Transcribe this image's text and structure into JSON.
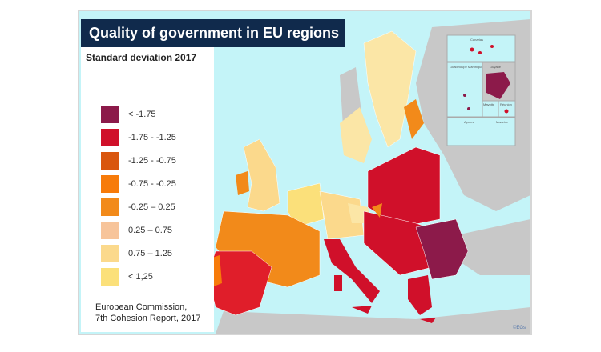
{
  "title": "Quality of government in EU regions",
  "subtitle": "Standard deviation 2017",
  "legend": [
    {
      "label": "< -1.75",
      "color": "#8c1a4a"
    },
    {
      "label": "-1.75 - -1.25",
      "color": "#d0102a"
    },
    {
      "label": "-1.25 - -0.75",
      "color": "#d9560e"
    },
    {
      "label": "-0.75 - -0.25",
      "color": "#f77b0a"
    },
    {
      "label": "-0.25 – 0.25",
      "color": "#f28a1a"
    },
    {
      "label": "0.25 – 0.75",
      "color": "#f7c49a"
    },
    {
      "label": "0.75 – 1.25",
      "color": "#fbd98c"
    },
    {
      "label": "< 1,25",
      "color": "#fbe07a"
    }
  ],
  "source": [
    "European  Commission,",
    "7th Cohesion Report, 2017"
  ],
  "insets": [
    "Canarias",
    "Guadeloupe Martinique",
    "Guyane",
    "Mayotte",
    "Réunion",
    "Açores",
    "Madeira"
  ],
  "credit": "©EGs",
  "colors": {
    "sea": "#c4f4f8",
    "non_eu": "#c8c8c8",
    "title_bg": "#102a4c"
  }
}
